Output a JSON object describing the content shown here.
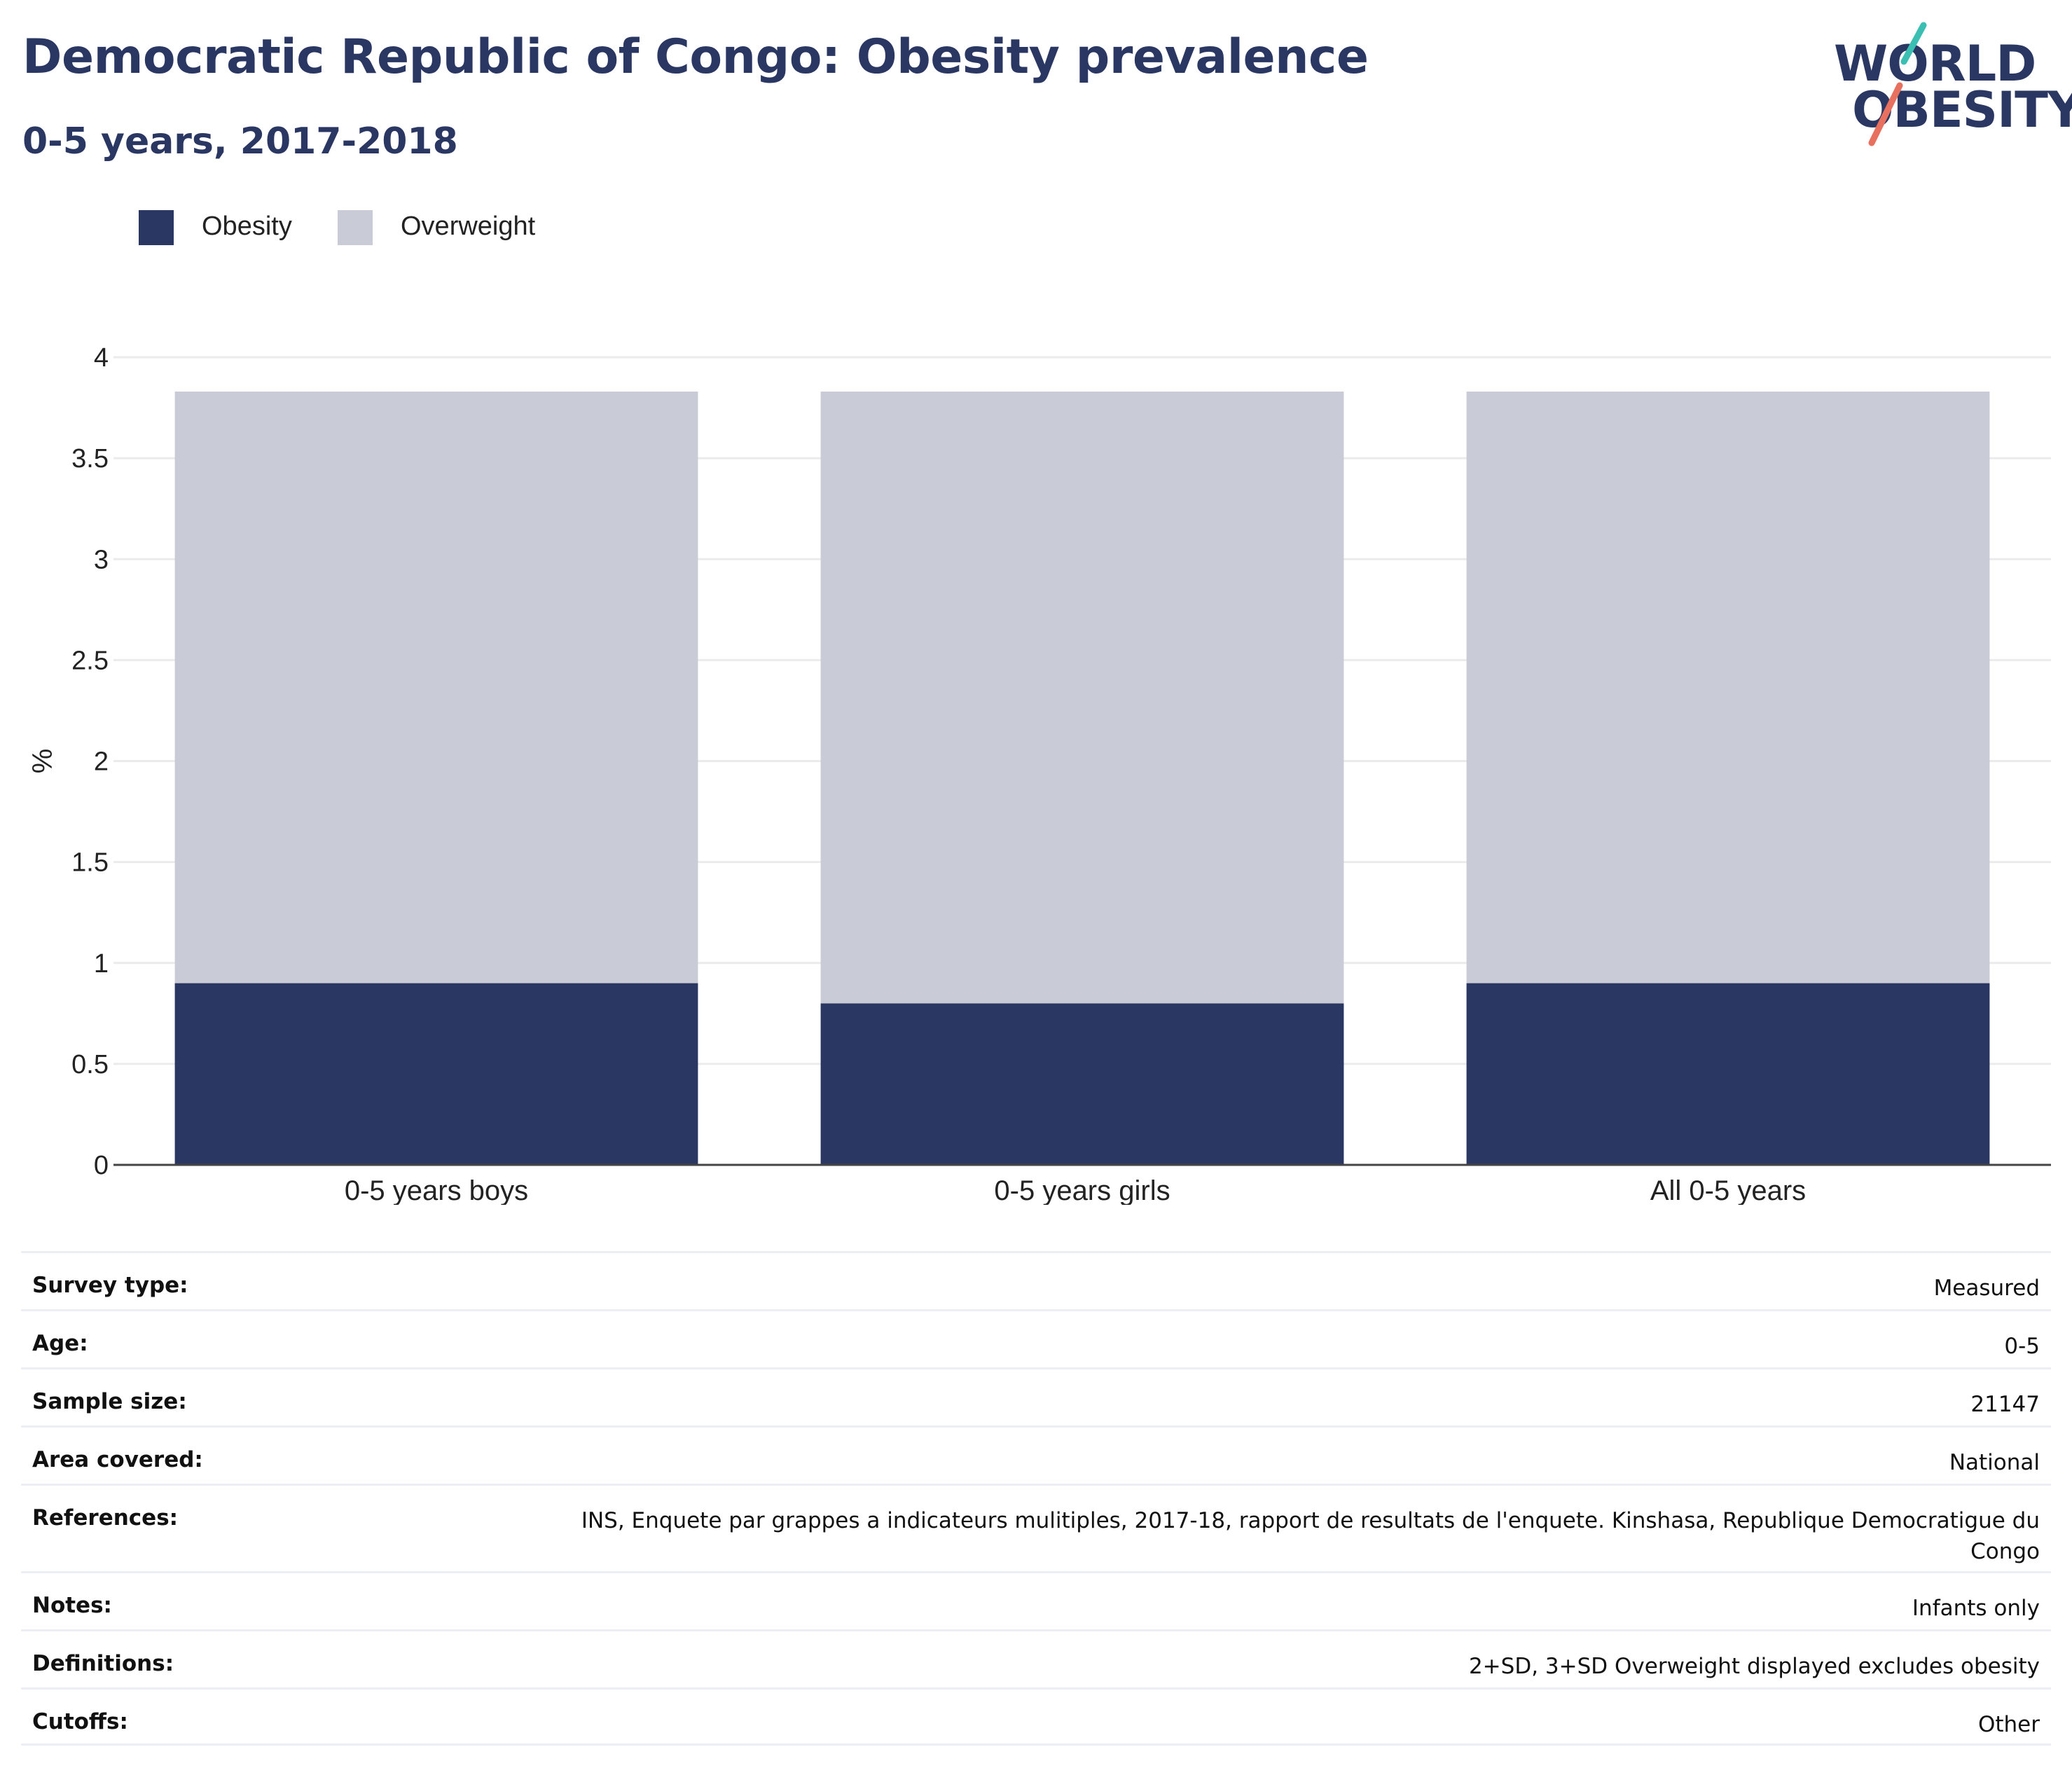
{
  "header": {
    "title": "Democratic Republic of Congo: Obesity prevalence",
    "subtitle": "0-5 years, 2017-2018"
  },
  "logo": {
    "line1": "WORLD",
    "line2": "OBESITY",
    "slash_colors": [
      "#3bbfb2",
      "#e8705f"
    ]
  },
  "chart_data": {
    "type": "bar",
    "stacked": true,
    "categories": [
      "0-5 years boys",
      "0-5 years girls",
      "All 0-5 years"
    ],
    "series": [
      {
        "name": "Obesity",
        "values": [
          0.9,
          0.8,
          0.9
        ],
        "color": "#2a3762"
      },
      {
        "name": "Overweight",
        "values": [
          2.93,
          3.03,
          2.93
        ],
        "color": "#c9cbd7"
      }
    ],
    "ylabel": "%",
    "ylim": [
      0,
      4
    ],
    "yticks": [
      "0",
      "0.5",
      "1",
      "1.5",
      "2",
      "2.5",
      "3",
      "3.5",
      "4"
    ],
    "grid": true,
    "legend": "top-left"
  },
  "info": [
    {
      "key": "Survey type:",
      "value": "Measured"
    },
    {
      "key": "Age:",
      "value": "0-5"
    },
    {
      "key": "Sample size:",
      "value": "21147"
    },
    {
      "key": "Area covered:",
      "value": "National"
    },
    {
      "key": "References:",
      "value": "INS, Enquete par grappes a indicateurs mulitiples, 2017-18, rapport de resultats de l'enquete. Kinshasa, Republique Democratigue du Congo"
    },
    {
      "key": "Notes:",
      "value": "Infants only"
    },
    {
      "key": "Definitions:",
      "value": "2+SD, 3+SD Overweight displayed excludes obesity"
    },
    {
      "key": "Cutoffs:",
      "value": "Other"
    }
  ]
}
